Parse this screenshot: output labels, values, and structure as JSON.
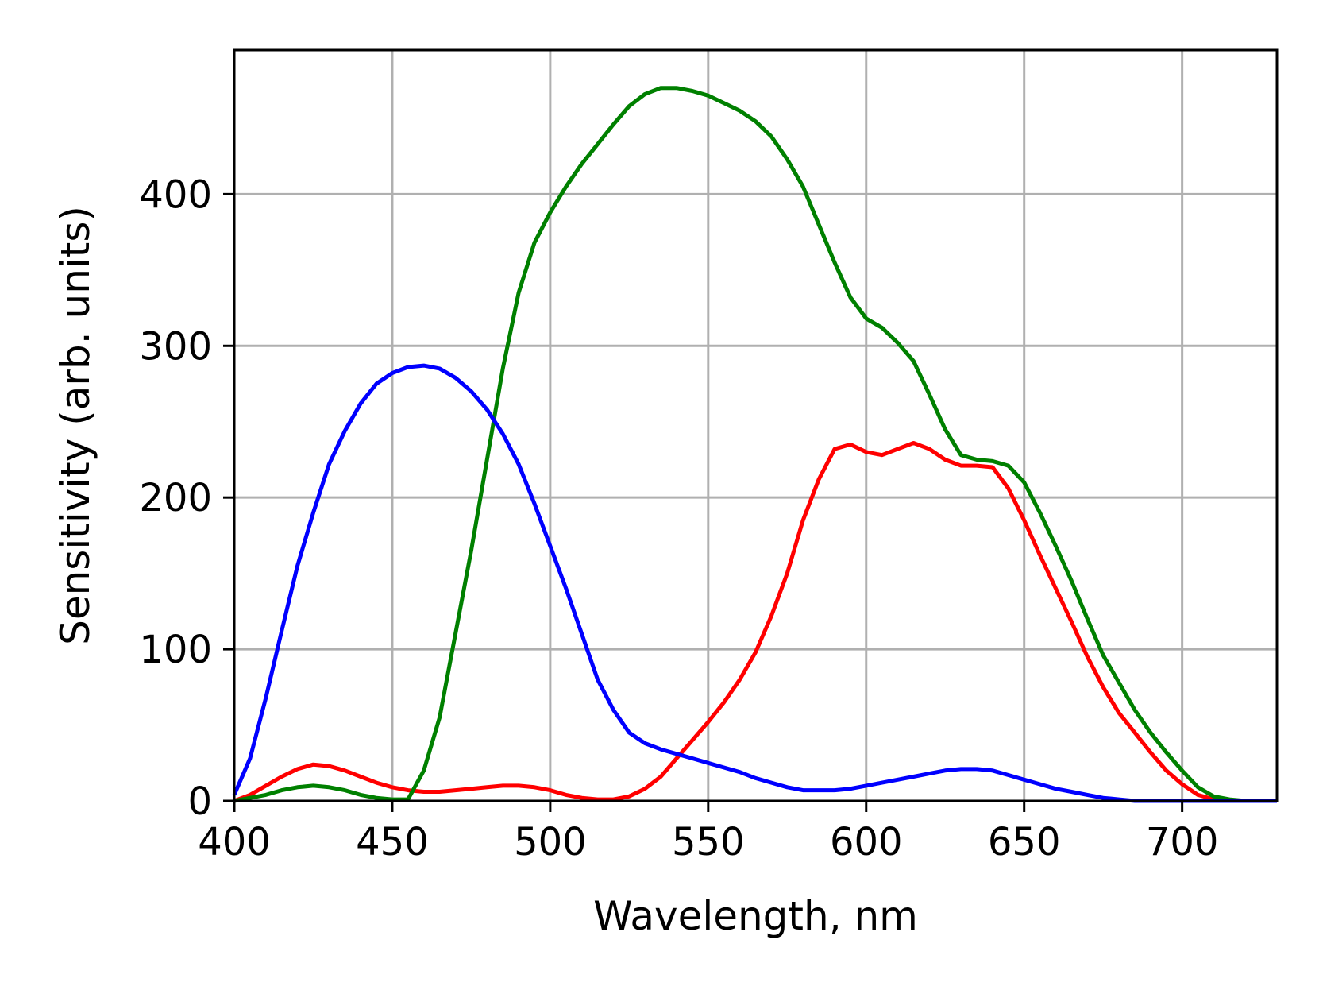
{
  "chart_data": {
    "type": "line",
    "title": "",
    "xlabel": "Wavelength, nm",
    "ylabel": "Sensitivity (arb. units)",
    "xlim": [
      400,
      730
    ],
    "ylim": [
      0,
      495
    ],
    "xticks": [
      400,
      450,
      500,
      550,
      600,
      650,
      700
    ],
    "xtick_labels": [
      "400",
      "450",
      "500",
      "550",
      "600",
      "650",
      "700"
    ],
    "yticks": [
      0,
      100,
      200,
      300,
      400
    ],
    "ytick_labels": [
      "0",
      "100",
      "200",
      "300",
      "400"
    ],
    "grid": true,
    "legend": "none",
    "series": [
      {
        "color": "#ff0000",
        "x": [
          400,
          405,
          410,
          415,
          420,
          425,
          430,
          435,
          440,
          445,
          450,
          455,
          460,
          465,
          470,
          475,
          480,
          485,
          490,
          495,
          500,
          505,
          510,
          515,
          520,
          525,
          530,
          535,
          540,
          545,
          550,
          555,
          560,
          565,
          570,
          575,
          580,
          585,
          590,
          595,
          600,
          605,
          610,
          615,
          620,
          625,
          630,
          635,
          640,
          645,
          650,
          655,
          660,
          665,
          670,
          675,
          680,
          685,
          690,
          695,
          700,
          705,
          710,
          715,
          720,
          725,
          730
        ],
        "y": [
          0,
          4,
          10,
          16,
          21,
          24,
          23,
          20,
          16,
          12,
          9,
          7,
          6,
          6,
          7,
          8,
          9,
          10,
          10,
          9,
          7,
          4,
          2,
          1,
          1,
          3,
          8,
          16,
          28,
          40,
          52,
          65,
          80,
          98,
          122,
          150,
          185,
          212,
          232,
          235,
          230,
          228,
          232,
          236,
          232,
          225,
          221,
          221,
          220,
          206,
          185,
          162,
          140,
          118,
          95,
          75,
          58,
          45,
          32,
          20,
          11,
          4,
          1,
          0,
          0,
          0,
          0
        ]
      },
      {
        "color": "#008000",
        "x": [
          400,
          405,
          410,
          415,
          420,
          425,
          430,
          435,
          440,
          445,
          450,
          455,
          460,
          465,
          470,
          475,
          480,
          485,
          490,
          495,
          500,
          505,
          510,
          515,
          520,
          525,
          530,
          535,
          540,
          545,
          550,
          555,
          560,
          565,
          570,
          575,
          580,
          585,
          590,
          595,
          600,
          605,
          610,
          615,
          620,
          625,
          630,
          635,
          640,
          645,
          650,
          655,
          660,
          665,
          670,
          675,
          680,
          685,
          690,
          695,
          700,
          705,
          710,
          715,
          720,
          725,
          730
        ],
        "y": [
          0,
          2,
          4,
          7,
          9,
          10,
          9,
          7,
          4,
          2,
          1,
          1,
          20,
          55,
          110,
          165,
          225,
          285,
          335,
          368,
          388,
          405,
          420,
          433,
          446,
          458,
          466,
          470,
          470,
          468,
          465,
          460,
          455,
          448,
          438,
          423,
          405,
          380,
          355,
          332,
          318,
          312,
          302,
          290,
          268,
          245,
          228,
          225,
          224,
          221,
          210,
          190,
          168,
          145,
          120,
          96,
          78,
          60,
          45,
          32,
          20,
          9,
          3,
          1,
          0,
          0,
          0
        ]
      },
      {
        "color": "#0000ff",
        "x": [
          400,
          405,
          410,
          415,
          420,
          425,
          430,
          435,
          440,
          445,
          450,
          455,
          460,
          465,
          470,
          475,
          480,
          485,
          490,
          495,
          500,
          505,
          510,
          515,
          520,
          525,
          530,
          535,
          540,
          545,
          550,
          555,
          560,
          565,
          570,
          575,
          580,
          585,
          590,
          595,
          600,
          605,
          610,
          615,
          620,
          625,
          630,
          635,
          640,
          645,
          650,
          655,
          660,
          665,
          670,
          675,
          680,
          685,
          690,
          695,
          700,
          705,
          710,
          715,
          720,
          725,
          730
        ],
        "y": [
          4,
          28,
          68,
          112,
          155,
          190,
          222,
          244,
          262,
          275,
          282,
          286,
          287,
          285,
          279,
          270,
          258,
          242,
          222,
          196,
          168,
          140,
          110,
          80,
          60,
          45,
          38,
          34,
          31,
          28,
          25,
          22,
          19,
          15,
          12,
          9,
          7,
          7,
          7,
          8,
          10,
          12,
          14,
          16,
          18,
          20,
          21,
          21,
          20,
          17,
          14,
          11,
          8,
          6,
          4,
          2,
          1,
          0,
          0,
          0,
          0,
          0,
          0,
          0,
          0,
          0,
          0
        ]
      }
    ]
  }
}
